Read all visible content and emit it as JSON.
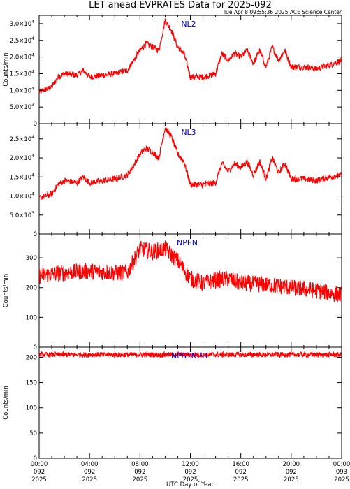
{
  "header": {
    "title": "LET ahead EVPRATES Data for 2025-092",
    "stamp": "Tue Apr  8 09:55:36 2025 ACE Science Center"
  },
  "chart_data": [
    {
      "type": "line",
      "label": "NL2",
      "ylabel": "Counts/min",
      "ylim": [
        0,
        32500
      ],
      "yticks": [
        {
          "value": 0,
          "label": "0"
        },
        {
          "value": 5000,
          "label": "5.0×10",
          "exp": "3"
        },
        {
          "value": 10000,
          "label": "1.0×10",
          "exp": "4"
        },
        {
          "value": 15000,
          "label": "1.5×10",
          "exp": "4"
        },
        {
          "value": 20000,
          "label": "2.0×10",
          "exp": "4"
        },
        {
          "value": 25000,
          "label": "2.5×10",
          "exp": "4"
        },
        {
          "value": 30000,
          "label": "3.0×10",
          "exp": "4"
        }
      ],
      "x_hours": [
        0,
        1,
        1.5,
        2,
        3,
        3.5,
        4,
        5,
        6,
        7,
        7.5,
        8,
        8.5,
        9,
        9.5,
        10,
        10.5,
        11,
        11.5,
        12,
        13,
        14,
        14.5,
        15,
        15.5,
        16,
        16.5,
        17,
        17.5,
        18,
        18.5,
        19,
        19.5,
        20,
        21,
        22,
        23,
        24
      ],
      "y": [
        9500,
        11000,
        14000,
        15000,
        14500,
        16000,
        14000,
        14500,
        15000,
        16000,
        19000,
        22000,
        24000,
        23000,
        22000,
        31000,
        28000,
        23000,
        21000,
        14000,
        14000,
        15000,
        21000,
        19000,
        21000,
        20000,
        22000,
        18000,
        22000,
        17000,
        23000,
        19000,
        22000,
        17000,
        17000,
        16500,
        17500,
        19000
      ],
      "noise": 900
    },
    {
      "type": "line",
      "label": "NL3",
      "ylabel": "",
      "ylim": [
        0,
        29000
      ],
      "yticks": [
        {
          "value": 0,
          "label": "0"
        },
        {
          "value": 5000,
          "label": "5.0×10",
          "exp": "3"
        },
        {
          "value": 10000,
          "label": "1.0×10",
          "exp": "4"
        },
        {
          "value": 15000,
          "label": "1.5×10",
          "exp": "4"
        },
        {
          "value": 20000,
          "label": "2.0×10",
          "exp": "4"
        },
        {
          "value": 25000,
          "label": "2.5×10",
          "exp": "4"
        }
      ],
      "x_hours": [
        0,
        1,
        1.5,
        2,
        3,
        3.5,
        4,
        5,
        6,
        7,
        7.5,
        8,
        8.5,
        9,
        9.5,
        10,
        10.5,
        11,
        11.5,
        12,
        13,
        14,
        14.5,
        15,
        15.5,
        16,
        16.5,
        17,
        17.5,
        18,
        18.5,
        19,
        19.5,
        20,
        21,
        22,
        23,
        24
      ],
      "y": [
        9500,
        10500,
        13000,
        14000,
        13500,
        15000,
        13500,
        14000,
        14500,
        15500,
        18000,
        21000,
        22500,
        21500,
        20000,
        28000,
        25500,
        21000,
        19000,
        13000,
        13000,
        13500,
        18500,
        16500,
        18500,
        17500,
        19000,
        15500,
        19000,
        14500,
        20000,
        16000,
        18500,
        14500,
        14500,
        14000,
        15000,
        15500
      ],
      "noise": 800
    },
    {
      "type": "line",
      "label": "NPEN",
      "ylabel": "Counts/min",
      "ylim": [
        0,
        380
      ],
      "yticks": [
        {
          "value": 0,
          "label": "0"
        },
        {
          "value": 100,
          "label": "100"
        },
        {
          "value": 200,
          "label": "200"
        },
        {
          "value": 300,
          "label": "300"
        }
      ],
      "x_hours": [
        0,
        2,
        4,
        6,
        7,
        8,
        9,
        10,
        11,
        12,
        13,
        14,
        15,
        16,
        18,
        20,
        22,
        24
      ],
      "y": [
        240,
        250,
        255,
        250,
        250,
        330,
        320,
        330,
        290,
        230,
        215,
        225,
        230,
        215,
        210,
        200,
        190,
        175
      ],
      "noise": 28
    },
    {
      "type": "line",
      "label": "NPSTN ST",
      "ylabel": "Counts/min",
      "ylim": [
        0,
        220
      ],
      "yticks": [
        {
          "value": 0,
          "label": "0"
        },
        {
          "value": 50,
          "label": "50"
        },
        {
          "value": 100,
          "label": "100"
        },
        {
          "value": 150,
          "label": "150"
        },
        {
          "value": 200,
          "label": "200"
        }
      ],
      "x_hours": [
        0,
        24
      ],
      "y": [
        205,
        205
      ],
      "noise": 5
    }
  ],
  "x_axis": {
    "label": "UTC Day of Year",
    "xlim_hours": [
      0,
      24
    ],
    "ticks": [
      {
        "hour": 0,
        "time": "00:00",
        "doy": "092",
        "year": "2025"
      },
      {
        "hour": 4,
        "time": "04:00",
        "doy": "092",
        "year": "2025"
      },
      {
        "hour": 8,
        "time": "08:00",
        "doy": "092",
        "year": "2025"
      },
      {
        "hour": 12,
        "time": "12:00",
        "doy": "092",
        "year": "2025"
      },
      {
        "hour": 16,
        "time": "16:00",
        "doy": "092",
        "year": "2025"
      },
      {
        "hour": 20,
        "time": "20:00",
        "doy": "092",
        "year": "2025"
      },
      {
        "hour": 24,
        "time": "00:00",
        "doy": "093",
        "year": "2025"
      }
    ]
  },
  "colors": {
    "series": "#ff0000",
    "panel_label": "#0000cc",
    "axes": "#000000"
  }
}
